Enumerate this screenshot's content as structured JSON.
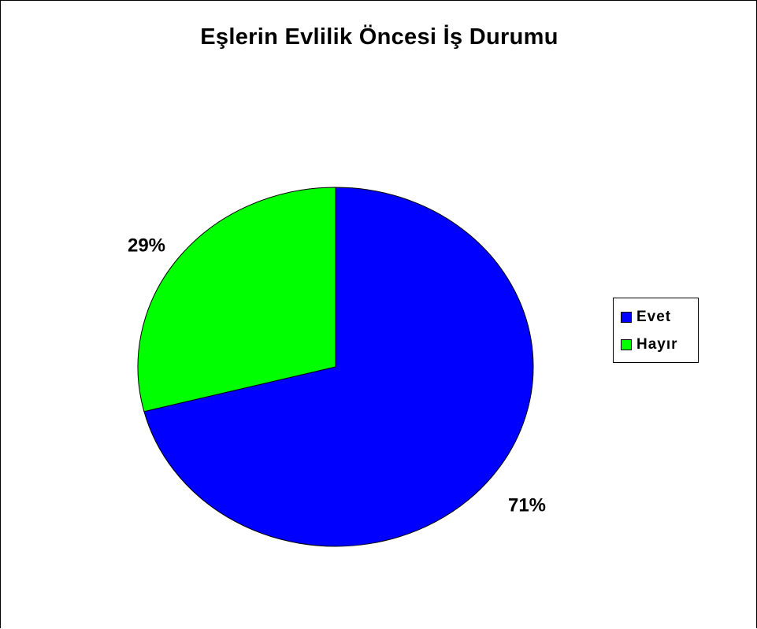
{
  "chart_data": {
    "type": "pie",
    "title": "Eşlerin Evlilik Öncesi İş Durumu",
    "categories": [
      "Evet",
      "Hayır"
    ],
    "values": [
      71,
      29
    ],
    "data_labels": [
      "71%",
      "29%"
    ],
    "colors": [
      "#0000FF",
      "#00FF00"
    ],
    "legend": {
      "position": "right",
      "entries": [
        "Evet",
        "Hayır"
      ]
    }
  }
}
